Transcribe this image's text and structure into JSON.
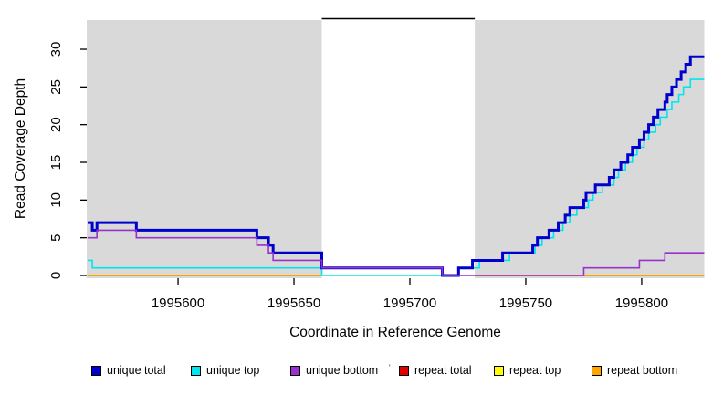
{
  "chart_data": {
    "type": "line",
    "subtype": "step-coverage",
    "title": "",
    "xlabel": "Coordinate in Reference Genome",
    "ylabel": "Read Coverage Depth",
    "xlim": [
      1995560.6,
      1995827
    ],
    "ylim": [
      0,
      34
    ],
    "grid": false,
    "legend_position": "bottom",
    "x_ticks": [
      {
        "value": 1995600,
        "label": "1995600"
      },
      {
        "value": 1995650,
        "label": "1995650"
      },
      {
        "value": 1995700,
        "label": "1995700"
      },
      {
        "value": 1995750,
        "label": "1995750"
      },
      {
        "value": 1995800,
        "label": "1995800"
      }
    ],
    "y_ticks": [
      {
        "value": 0,
        "label": "0"
      },
      {
        "value": 5,
        "label": "5"
      },
      {
        "value": 10,
        "label": "10"
      },
      {
        "value": 15,
        "label": "15"
      },
      {
        "value": 20,
        "label": "20"
      },
      {
        "value": 25,
        "label": "25"
      },
      {
        "value": 30,
        "label": "30"
      }
    ],
    "background_regions": [
      {
        "name": "repeat-region-left",
        "from": 1995560.6,
        "to": 1995662,
        "color": "#d9d9d9"
      },
      {
        "name": "repeat-region-right",
        "from": 1995728,
        "to": 1995827,
        "color": "#d9d9d9"
      }
    ],
    "top_marker_line": {
      "from": 1995662,
      "to": 1995728,
      "color": "#000000"
    },
    "series": [
      {
        "name": "unique total",
        "color": "#0000CD",
        "width": 3,
        "z": 5,
        "segments": [
          {
            "points": [
              [
                1995561,
                7
              ],
              [
                1995563,
                6
              ],
              [
                1995565,
                7
              ],
              [
                1995582,
                6
              ],
              [
                1995634,
                5
              ],
              [
                1995639,
                4
              ],
              [
                1995641,
                3
              ],
              [
                1995662,
                1
              ],
              [
                1995714,
                0
              ],
              [
                1995721,
                1
              ],
              [
                1995727,
                2
              ],
              [
                1995740,
                3
              ],
              [
                1995753,
                4
              ],
              [
                1995755,
                5
              ],
              [
                1995760,
                6
              ],
              [
                1995764,
                7
              ],
              [
                1995767,
                8
              ],
              [
                1995769,
                9
              ],
              [
                1995775,
                10
              ],
              [
                1995776,
                11
              ],
              [
                1995780,
                12
              ],
              [
                1995786,
                13
              ],
              [
                1995788,
                14
              ],
              [
                1995791,
                15
              ],
              [
                1995794,
                16
              ],
              [
                1995796,
                17
              ],
              [
                1995799,
                18
              ],
              [
                1995801,
                19
              ],
              [
                1995803,
                20
              ],
              [
                1995805,
                21
              ],
              [
                1995807,
                22
              ],
              [
                1995810,
                23
              ],
              [
                1995811,
                24
              ],
              [
                1995813,
                25
              ],
              [
                1995815,
                26
              ],
              [
                1995817,
                27
              ],
              [
                1995819,
                28
              ],
              [
                1995821,
                29
              ]
            ],
            "end": 1995827
          }
        ]
      },
      {
        "name": "unique top",
        "color": "#00E5EE",
        "width": 1.6,
        "z": 4,
        "segments": [
          {
            "points": [
              [
                1995561,
                2
              ],
              [
                1995563,
                1
              ],
              [
                1995662,
                0
              ],
              [
                1995721,
                1
              ],
              [
                1995730,
                2
              ],
              [
                1995743,
                3
              ],
              [
                1995754,
                4
              ],
              [
                1995757,
                5
              ],
              [
                1995762,
                6
              ],
              [
                1995766,
                7
              ],
              [
                1995769,
                8
              ],
              [
                1995772,
                9
              ],
              [
                1995777,
                10
              ],
              [
                1995779,
                11
              ],
              [
                1995783,
                12
              ],
              [
                1995788,
                13
              ],
              [
                1995790,
                14
              ],
              [
                1995793,
                15
              ],
              [
                1995796,
                16
              ],
              [
                1995798,
                17
              ],
              [
                1995801,
                18
              ],
              [
                1995803,
                19
              ],
              [
                1995806,
                20
              ],
              [
                1995808,
                21
              ],
              [
                1995811,
                22
              ],
              [
                1995813,
                23
              ],
              [
                1995816,
                24
              ],
              [
                1995818,
                25
              ],
              [
                1995821,
                26
              ]
            ],
            "end": 1995827
          }
        ]
      },
      {
        "name": "unique bottom",
        "color": "#9932CC",
        "width": 1.6,
        "z": 6,
        "segments": [
          {
            "points": [
              [
                1995561,
                5
              ],
              [
                1995565,
                6
              ],
              [
                1995582,
                5
              ],
              [
                1995634,
                4
              ],
              [
                1995639,
                3
              ],
              [
                1995641,
                2
              ],
              [
                1995662,
                1
              ],
              [
                1995714,
                0
              ],
              [
                1995775,
                1
              ],
              [
                1995799,
                2
              ],
              [
                1995810,
                3
              ]
            ],
            "end": 1995827
          }
        ]
      },
      {
        "name": "repeat total",
        "color": "#E00000",
        "width": 1.6,
        "z": 1,
        "segments": [
          {
            "points": [
              [
                1995561,
                0
              ]
            ],
            "end": 1995662
          },
          {
            "points": [
              [
                1995728,
                0
              ]
            ],
            "end": 1995827
          }
        ]
      },
      {
        "name": "repeat top",
        "color": "#FFFF00",
        "width": 1.6,
        "z": 2,
        "segments": [
          {
            "points": [
              [
                1995561,
                0
              ]
            ],
            "end": 1995662
          },
          {
            "points": [
              [
                1995728,
                0
              ]
            ],
            "end": 1995827
          }
        ]
      },
      {
        "name": "repeat bottom",
        "color": "#FFA500",
        "width": 2,
        "z": 3,
        "segments": [
          {
            "points": [
              [
                1995561,
                0
              ]
            ],
            "end": 1995662
          },
          {
            "points": [
              [
                1995728,
                0
              ]
            ],
            "end": 1995827
          }
        ]
      }
    ],
    "legend": [
      {
        "label": "unique total",
        "color": "#0000CD"
      },
      {
        "label": "unique top",
        "color": "#00E5EE"
      },
      {
        "label": "unique bottom",
        "color": "#9932CC"
      },
      {
        "label": "repeat total",
        "color": "#E00000"
      },
      {
        "label": "repeat top",
        "color": "#FFFF00"
      },
      {
        "label": "repeat bottom",
        "color": "#FFA500"
      }
    ],
    "legend_stray_mark": "'"
  }
}
